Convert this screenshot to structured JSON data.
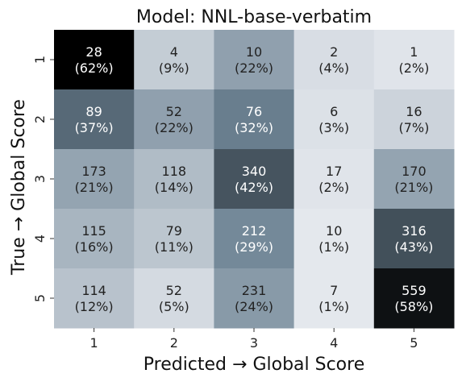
{
  "chart_data": {
    "type": "heatmap",
    "title": "Model: NNL-base-verbatim",
    "xlabel": "Predicted → Global Score",
    "ylabel": "True → Global Score",
    "x_categories": [
      "1",
      "2",
      "3",
      "4",
      "5"
    ],
    "y_categories": [
      "1",
      "2",
      "3",
      "4",
      "5"
    ],
    "values": [
      [
        28,
        4,
        10,
        2,
        1
      ],
      [
        89,
        52,
        76,
        6,
        16
      ],
      [
        173,
        118,
        340,
        17,
        170
      ],
      [
        115,
        79,
        212,
        10,
        316
      ],
      [
        114,
        52,
        231,
        7,
        559
      ]
    ],
    "labels": [
      [
        "28\n(62%)",
        "4\n(9%)",
        "10\n(22%)",
        "2\n(4%)",
        "1\n(2%)"
      ],
      [
        "89\n(37%)",
        "52\n(22%)",
        "76\n(32%)",
        "6\n(3%)",
        "16\n(7%)"
      ],
      [
        "173\n(21%)",
        "118\n(14%)",
        "340\n(42%)",
        "17\n(2%)",
        "170\n(21%)"
      ],
      [
        "115\n(16%)",
        "79\n(11%)",
        "212\n(29%)",
        "10\n(1%)",
        "316\n(43%)"
      ],
      [
        "114\n(12%)",
        "52\n(5%)",
        "231\n(24%)",
        "7\n(1%)",
        "559\n(58%)"
      ]
    ],
    "percent_matrix": [
      [
        62,
        9,
        22,
        4,
        2
      ],
      [
        37,
        22,
        32,
        3,
        7
      ],
      [
        21,
        14,
        42,
        2,
        21
      ],
      [
        16,
        11,
        29,
        1,
        43
      ],
      [
        12,
        5,
        24,
        1,
        58
      ]
    ],
    "color_scale": {
      "low": "#e8ebf0",
      "mid": "#6c8293",
      "high": "#000000"
    },
    "grid": false,
    "legend": "none"
  }
}
